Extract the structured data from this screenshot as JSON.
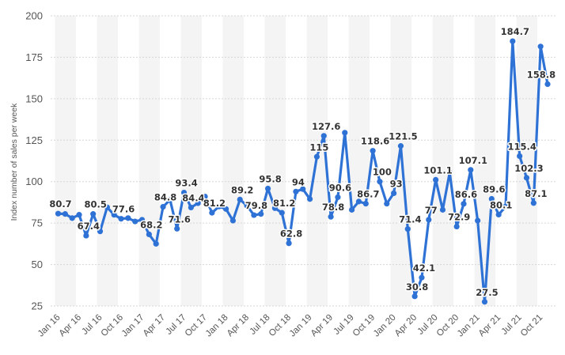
{
  "chart_data": {
    "type": "line",
    "ylabel": "Index number of sales per week",
    "ylim": [
      25,
      200
    ],
    "yticks": [
      25,
      50,
      75,
      100,
      125,
      150,
      175,
      200
    ],
    "grid": true,
    "x_tick_labels": [
      "Jan 16",
      "Apr 16",
      "Jul 16",
      "Oct 16",
      "Jan 17",
      "Apr 17",
      "Jul 17",
      "Oct 17",
      "Jan 18",
      "Apr 18",
      "Jul 18",
      "Oct 18",
      "Jan 19",
      "Apr 19",
      "Jul 19",
      "Oct 19",
      "Jan 20",
      "Apr 20",
      "Jul 20",
      "Oct 20",
      "Jan 21",
      "Apr 21",
      "Jul 21",
      "Oct 21"
    ],
    "series": [
      {
        "name": "Index number of sales per week",
        "color": "#2f72d6",
        "values": [
          80.7,
          80.5,
          78,
          80,
          67.4,
          80.5,
          70,
          84.5,
          80,
          77.6,
          78,
          76,
          77,
          68.2,
          62.5,
          84.8,
          89,
          71.6,
          93.4,
          84.4,
          87,
          91,
          81.2,
          85,
          83.5,
          76.5,
          89.2,
          85.5,
          79.8,
          80.5,
          95.8,
          84,
          81.2,
          62.8,
          94,
          95.5,
          89.5,
          115,
          127.6,
          78.8,
          90.6,
          129.5,
          83,
          88,
          86.7,
          118.6,
          100,
          86.7,
          93,
          121.5,
          71.4,
          30.8,
          42.1,
          77,
          101.1,
          83,
          105.5,
          72.9,
          86.6,
          107.1,
          76.5,
          27.5,
          89.6,
          80.1,
          85,
          184.7,
          115.4,
          102.3,
          87.1,
          181.5,
          158.8
        ],
        "labels": {
          "0": "80.7",
          "4": "67.4",
          "5": "80.5",
          "9": "77.6",
          "13": "68.2",
          "15": "84.8",
          "17": "71.6",
          "18": "93.4",
          "19": "84.4",
          "22": "81.2",
          "26": "89.2",
          "28": "79.8",
          "30": "95.8",
          "32": "81.2",
          "33": "62.8",
          "34": "94",
          "37": "115",
          "38": "127.6",
          "39": "78.8",
          "40": "90.6",
          "44": "86.7",
          "45": "118.6",
          "46": "100",
          "48": "93",
          "49": "121.5",
          "50": "71.4",
          "51": "30.8",
          "52": "42.1",
          "53": "77",
          "54": "101.1",
          "57": "72.9",
          "58": "86.6",
          "59": "107.1",
          "61": "27.5",
          "62": "89.6",
          "63": "80.1",
          "65": "184.7",
          "66": "115.4",
          "67": "102.3",
          "68": "87.1",
          "70": "158.8"
        }
      }
    ]
  }
}
